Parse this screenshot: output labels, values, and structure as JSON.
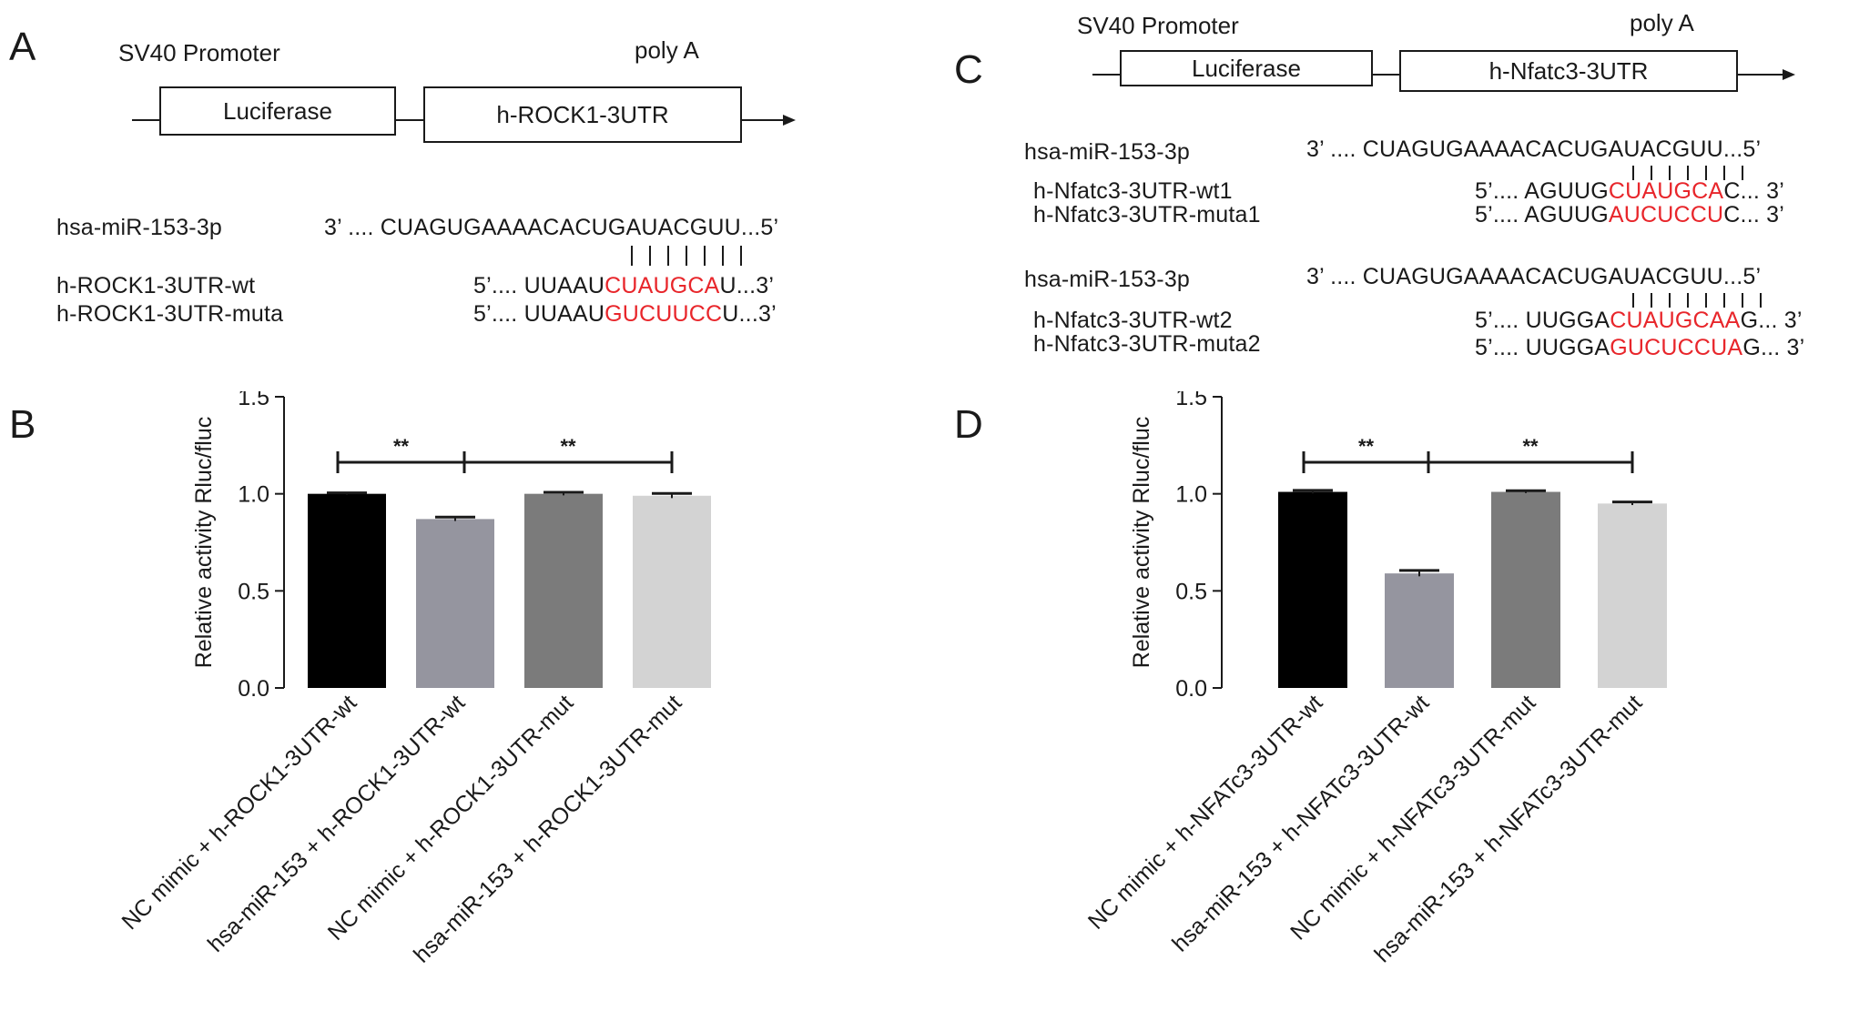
{
  "panels": {
    "A": {
      "letter": "A",
      "promoter_label": "SV40 Promoter",
      "polya_label": "poly A",
      "box1": "Luciferase",
      "box2": "h-ROCK1-3UTR",
      "seq_rows": [
        {
          "name": "hsa-miR-153-3p",
          "pre": "3’ .... CUAGUGAAAACACUGAUACGUU...5’",
          "red": "",
          "post": ""
        },
        {
          "name": "h-ROCK1-3UTR-wt",
          "pre": "5’.... UUAAU",
          "red": "CUAUGCA",
          "post": "U...3’"
        },
        {
          "name": "h-ROCK1-3UTR-muta",
          "pre": "5’.... UUAAU",
          "red": "GUCUUCC",
          "post": "U...3’"
        }
      ]
    },
    "B": {
      "letter": "B",
      "significance": [
        "**",
        "**"
      ]
    },
    "C": {
      "letter": "C",
      "promoter_label": "SV40 Promoter",
      "polya_label": "poly A",
      "box1": "Luciferase",
      "box2": "h-Nfatc3-3UTR",
      "seq_rows": [
        {
          "name": "hsa-miR-153-3p",
          "pre": "3’ .... CUAGUGAAAACACUGAUACGUU...5’",
          "red": "",
          "post": ""
        },
        {
          "name": "h-Nfatc3-3UTR-wt1",
          "pre": "5’.... AGUUG",
          "red": "CUAUGCA",
          "post": "C... 3’"
        },
        {
          "name": "h-Nfatc3-3UTR-muta1",
          "pre": "5’.... AGUUG",
          "red": "AUCUCCU",
          "post": "C... 3’"
        },
        {
          "name": "hsa-miR-153-3p",
          "pre": "3’ .... CUAGUGAAAACACUGAUACGUU...5’",
          "red": "",
          "post": ""
        },
        {
          "name": "h-Nfatc3-3UTR-wt2",
          "pre": "5’.... UUGGA",
          "red": "CUAUGCAA",
          "post": "G... 3’"
        },
        {
          "name": "h-Nfatc3-3UTR-muta2",
          "pre": "5’.... UUGGA",
          "red": "GUCUCCUA",
          "post": "G... 3’"
        }
      ]
    },
    "D": {
      "letter": "D",
      "significance": [
        "**",
        "**"
      ]
    }
  },
  "chart_data": [
    {
      "type": "bar",
      "panel": "B",
      "title": "",
      "xlabel": "",
      "ylabel": "Relative activity Rluc/fluc",
      "ylim": [
        0,
        1.5
      ],
      "yticks": [
        "0.0",
        "0.5",
        "1.0",
        "1.5"
      ],
      "categories": [
        "NC mimic + h-ROCK1-3UTR-wt",
        "hsa-miR-153 + h-ROCK1-3UTR-wt",
        "NC mimic + h-ROCK1-3UTR-mut",
        "hsa-miR-153 + h-ROCK1-3UTR-mut"
      ],
      "values": [
        1.0,
        0.87,
        1.0,
        0.99
      ],
      "errors": [
        0.005,
        0.01,
        0.008,
        0.012
      ],
      "colors": [
        "#000000",
        "#95959f",
        "#7b7b7b",
        "#d3d3d3"
      ],
      "brackets": [
        {
          "from": 0,
          "to": 1,
          "label": "**"
        },
        {
          "from": 1,
          "to": 3,
          "label": "**"
        }
      ]
    },
    {
      "type": "bar",
      "panel": "D",
      "title": "",
      "xlabel": "",
      "ylabel": "Relative activity Rluc/fluc",
      "ylim": [
        0,
        1.5
      ],
      "yticks": [
        "0.0",
        "0.5",
        "1.0",
        "1.5"
      ],
      "categories": [
        "NC mimic + h-NFATc3-3UTR-wt",
        "hsa-miR-153 + h-NFATc3-3UTR-wt",
        "NC mimic + h-NFATc3-3UTR-mut",
        "hsa-miR-153 + h-NFATc3-3UTR-mut"
      ],
      "values": [
        1.01,
        0.59,
        1.01,
        0.95
      ],
      "errors": [
        0.008,
        0.015,
        0.006,
        0.008
      ],
      "colors": [
        "#000000",
        "#95959f",
        "#7b7b7b",
        "#d3d3d3"
      ],
      "brackets": [
        {
          "from": 0,
          "to": 1,
          "label": "**"
        },
        {
          "from": 1,
          "to": 3,
          "label": "**"
        }
      ]
    }
  ]
}
